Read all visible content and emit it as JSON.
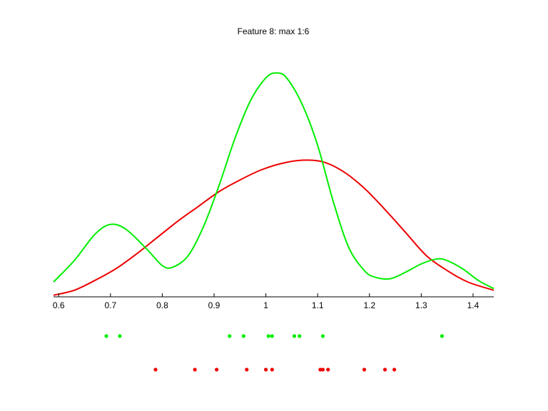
{
  "chart_data": {
    "type": "line",
    "title": "Feature 8: max 1:6",
    "xlabel": "",
    "ylabel": "",
    "xlim": [
      0.59,
      1.44
    ],
    "x_ticks": [
      "0.6",
      "0.7",
      "0.8",
      "0.9",
      "1",
      "1.1",
      "1.2",
      "1.3",
      "1.4"
    ],
    "y_axis_visible": false,
    "grid": false,
    "colors": {
      "green": "#00ee00",
      "red": "#ee0000"
    },
    "series": [
      {
        "color": "#00ee00",
        "x": [
          0.59,
          0.63,
          0.67,
          0.7,
          0.73,
          0.77,
          0.8,
          0.82,
          0.85,
          0.88,
          0.91,
          0.94,
          0.97,
          1.0,
          1.02,
          1.04,
          1.07,
          1.1,
          1.13,
          1.16,
          1.19,
          1.21,
          1.24,
          1.27,
          1.3,
          1.33,
          1.35,
          1.38,
          1.41,
          1.44
        ],
        "y": [
          0.09,
          0.22,
          0.38,
          0.44,
          0.41,
          0.29,
          0.19,
          0.18,
          0.25,
          0.43,
          0.68,
          0.96,
          1.19,
          1.33,
          1.36,
          1.33,
          1.17,
          0.92,
          0.58,
          0.3,
          0.16,
          0.12,
          0.11,
          0.15,
          0.2,
          0.23,
          0.22,
          0.17,
          0.1,
          0.05
        ]
      },
      {
        "color": "#ee0000",
        "x": [
          0.59,
          0.63,
          0.67,
          0.71,
          0.75,
          0.79,
          0.83,
          0.87,
          0.91,
          0.95,
          0.99,
          1.03,
          1.07,
          1.11,
          1.15,
          1.19,
          1.23,
          1.27,
          1.31,
          1.35,
          1.39,
          1.44
        ],
        "y": [
          0.01,
          0.04,
          0.1,
          0.17,
          0.26,
          0.36,
          0.46,
          0.55,
          0.64,
          0.71,
          0.77,
          0.81,
          0.83,
          0.82,
          0.76,
          0.66,
          0.53,
          0.39,
          0.25,
          0.16,
          0.09,
          0.04
        ]
      }
    ],
    "points": [
      {
        "color": "#00ee00",
        "x": [
          0.692,
          0.718,
          0.93,
          0.957,
          1.005,
          1.012,
          1.055,
          1.065,
          1.11,
          1.34
        ]
      },
      {
        "color": "#ee0000",
        "x": [
          0.787,
          0.863,
          0.905,
          0.963,
          1.0,
          1.012,
          1.105,
          1.11,
          1.12,
          1.19,
          1.23,
          1.248
        ]
      }
    ]
  }
}
